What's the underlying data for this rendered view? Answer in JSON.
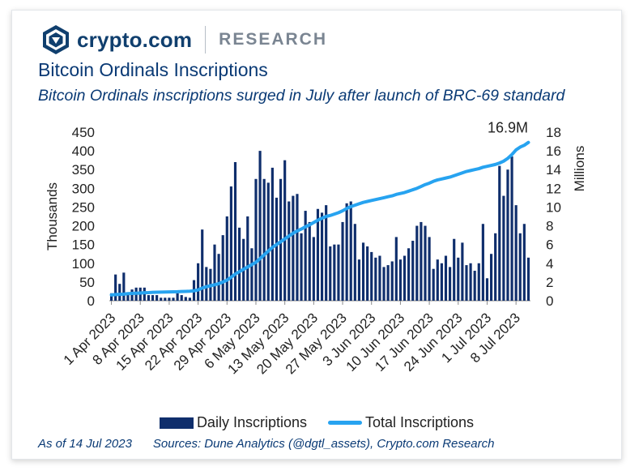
{
  "brand": {
    "name": "crypto.com",
    "section": "RESEARCH"
  },
  "title": "Bitcoin Ordinals Inscriptions",
  "subtitle": "Bitcoin Ordinals inscriptions surged in July after launch of BRC-69 standard",
  "footer": {
    "date": "As of 14 Jul 2023",
    "sources": "Sources: Dune Analytics (@dgtl_assets), Crypto.com Research"
  },
  "colors": {
    "bars": "#0f2e6c",
    "line": "#27a3f0",
    "text": "#0a3a75"
  },
  "chart_data": {
    "type": "bar",
    "x_tick_labels": [
      "1 Apr 2023",
      "8 Apr 2023",
      "15 Apr 2023",
      "22 Apr 2023",
      "29 Apr 2023",
      "6 May 2023",
      "13 May 2023",
      "20 May 2023",
      "27 May 2023",
      "3 Jun 2023",
      "10 Jun 2023",
      "17 Jun 2023",
      "24 Jun 2023",
      "1 Jul 2023",
      "8 Jul 2023"
    ],
    "ylabel_left": "Thousands",
    "ylabel_right": "Millions",
    "ylim_left": [
      0,
      450
    ],
    "ylim_right": [
      0,
      18
    ],
    "yticks_left": [
      "0",
      "50",
      "100",
      "150",
      "200",
      "250",
      "300",
      "350",
      "400",
      "450"
    ],
    "yticks_right": [
      "0",
      "2",
      "4",
      "6",
      "8",
      "10",
      "12",
      "14",
      "16",
      "18"
    ],
    "annotation": "16.9M",
    "series": [
      {
        "name": "Daily Inscriptions",
        "axis": "left",
        "values": [
          20,
          70,
          45,
          75,
          20,
          30,
          35,
          35,
          35,
          15,
          15,
          15,
          8,
          8,
          8,
          8,
          20,
          15,
          10,
          8,
          55,
          100,
          190,
          90,
          85,
          150,
          125,
          175,
          225,
          305,
          370,
          195,
          165,
          225,
          140,
          325,
          400,
          325,
          315,
          355,
          275,
          325,
          375,
          265,
          280,
          285,
          180,
          240,
          210,
          170,
          245,
          235,
          255,
          145,
          150,
          150,
          210,
          260,
          265,
          205,
          110,
          155,
          145,
          130,
          115,
          120,
          90,
          95,
          105,
          170,
          110,
          120,
          140,
          160,
          200,
          210,
          200,
          170,
          85,
          110,
          100,
          120,
          90,
          165,
          115,
          155,
          95,
          100,
          80,
          100,
          205,
          60,
          125,
          180,
          360,
          280,
          350,
          385,
          255,
          180,
          205,
          115
        ]
      },
      {
        "name": "Total Inscriptions",
        "axis": "right",
        "values": [
          0.62,
          0.66,
          0.68,
          0.7,
          0.76,
          0.78,
          0.8,
          0.82,
          0.85,
          0.87,
          0.9,
          0.91,
          0.92,
          0.93,
          0.94,
          0.95,
          0.96,
          0.98,
          1.0,
          1.02,
          1.06,
          1.15,
          1.35,
          1.5,
          1.6,
          1.7,
          1.82,
          2.0,
          2.2,
          2.5,
          2.85,
          3.1,
          3.35,
          3.6,
          3.85,
          4.1,
          4.5,
          4.9,
          5.3,
          5.7,
          6.0,
          6.3,
          6.6,
          6.9,
          7.2,
          7.45,
          7.65,
          7.9,
          8.1,
          8.35,
          8.6,
          8.8,
          9.0,
          9.1,
          9.25,
          9.4,
          9.6,
          9.85,
          10.05,
          10.2,
          10.35,
          10.5,
          10.6,
          10.7,
          10.8,
          10.9,
          11.0,
          11.1,
          11.2,
          11.35,
          11.45,
          11.55,
          11.7,
          11.85,
          12.0,
          12.2,
          12.4,
          12.55,
          12.75,
          12.9,
          13.0,
          13.1,
          13.2,
          13.35,
          13.5,
          13.65,
          13.8,
          13.9,
          14.0,
          14.1,
          14.25,
          14.35,
          14.45,
          14.55,
          14.7,
          14.9,
          15.2,
          15.6,
          16.1,
          16.4,
          16.6,
          16.9
        ]
      }
    ],
    "grid": false,
    "legend_position": "bottom"
  }
}
